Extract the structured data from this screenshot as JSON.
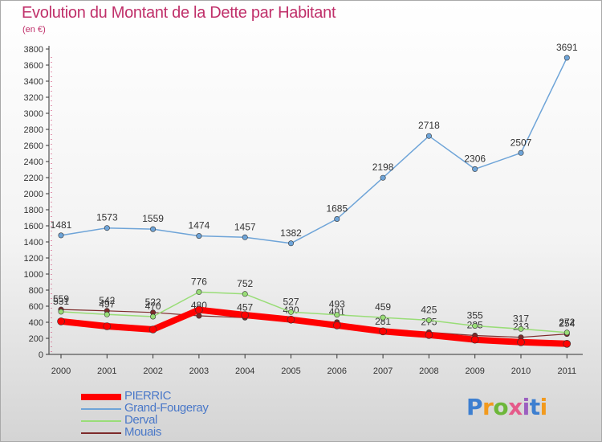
{
  "chart_data": {
    "type": "line",
    "title": "Evolution du Montant de la Dette par Habitant",
    "subtitle": "(en €)",
    "x": [
      "2000",
      "2001",
      "2002",
      "2003",
      "2004",
      "2005",
      "2006",
      "2007",
      "2008",
      "2009",
      "2010",
      "2011"
    ],
    "ylim": [
      0,
      3800
    ],
    "yticks": [
      0,
      200,
      400,
      600,
      800,
      1000,
      1200,
      1400,
      1600,
      1800,
      2000,
      2200,
      2400,
      2600,
      2800,
      3000,
      3200,
      3400,
      3600,
      3800
    ],
    "grid": false,
    "legend_position": "bottom-left",
    "series": [
      {
        "name": "PIERRIC",
        "color": "#ff0000",
        "width": 8,
        "labels": false,
        "values": [
          411,
          350,
          310,
          554,
          490,
          433,
          361,
          287,
          242,
          183,
          152,
          132
        ]
      },
      {
        "name": "Grand-Fougeray",
        "color": "#6ea4d8",
        "width": 1.5,
        "labels": true,
        "values": [
          1481,
          1573,
          1559,
          1474,
          1457,
          1382,
          1685,
          2198,
          2718,
          2306,
          2507,
          3691
        ]
      },
      {
        "name": "Derval",
        "color": "#99dd77",
        "width": 1.5,
        "labels": true,
        "values": [
          531,
          497,
          470,
          776,
          752,
          527,
          493,
          459,
          425,
          355,
          317,
          272
        ]
      },
      {
        "name": "Mouais",
        "color": "#7d2a2a",
        "width": 1.2,
        "labels": true,
        "values": [
          559,
          542,
          522,
          480,
          457,
          420,
          401,
          281,
          275,
          235,
          213,
          254
        ]
      }
    ]
  },
  "legend": [
    {
      "label": "PIERRIC",
      "color": "#ff0000",
      "thick": true
    },
    {
      "label": "Grand-Fougeray",
      "color": "#6ea4d8",
      "thick": false
    },
    {
      "label": "Derval",
      "color": "#99dd77",
      "thick": false
    },
    {
      "label": "Mouais",
      "color": "#7d2a2a",
      "thick": false
    }
  ],
  "brand": {
    "text": "Proxiti"
  }
}
